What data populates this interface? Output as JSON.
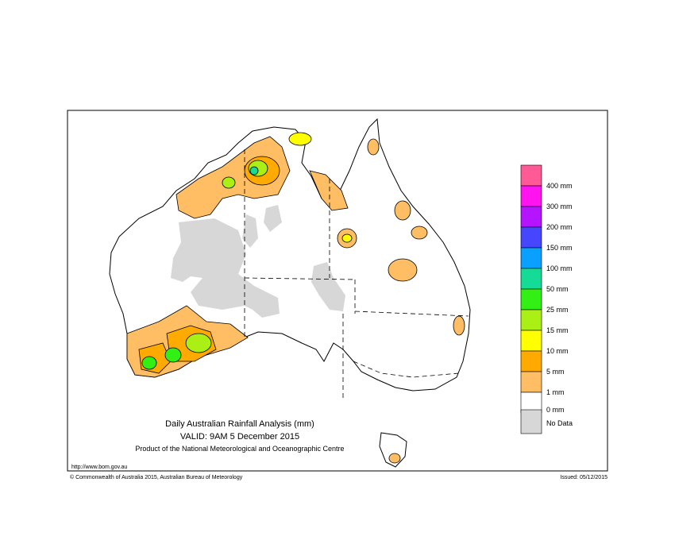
{
  "map": {
    "title": "Daily Australian Rainfall Analysis (mm)",
    "valid": "VALID: 9AM  5 December 2015",
    "product": "Product of the National Meteorological and Oceanographic Centre",
    "url": "http://www.bom.gov.au",
    "copyright": "© Commonwealth of Australia 2015, Australian Bureau of Meteorology",
    "issued": "Issued: 05/12/2015",
    "legend": {
      "colors": [
        "#ff5a96",
        "#ff14f0",
        "#b414ff",
        "#4646ff",
        "#0aa0ff",
        "#14dc96",
        "#32f014",
        "#aaf014",
        "#ffff00",
        "#ffaa00",
        "#ffbe64",
        "#ffffff",
        "#d7d7d7"
      ],
      "labels": [
        "400 mm",
        "300 mm",
        "200 mm",
        "150 mm",
        "100 mm",
        "50 mm",
        "25 mm",
        "15 mm",
        "10 mm",
        "5 mm",
        "1 mm",
        "0 mm",
        "No Data"
      ]
    }
  }
}
